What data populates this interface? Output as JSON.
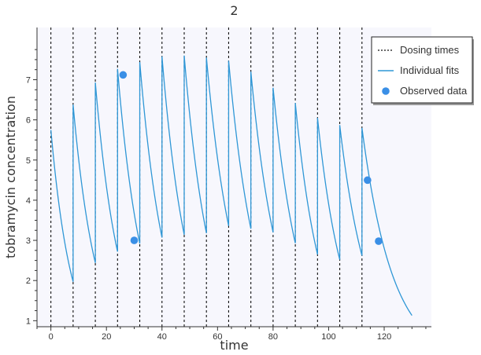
{
  "chart_data": {
    "type": "line",
    "title": "2",
    "xlabel": "time",
    "ylabel": "tobramycin concentration",
    "xlim": [
      -5,
      137
    ],
    "ylim": [
      0.85,
      8.3
    ],
    "x_ticks": [
      0,
      20,
      40,
      60,
      80,
      100,
      120
    ],
    "y_ticks": [
      1,
      2,
      3,
      4,
      5,
      6,
      7
    ],
    "grid": false,
    "legend_position": "top-right",
    "colors": {
      "fit": "#2f97d6",
      "observed": "#3a8fe6",
      "dosing": "#111111",
      "background": "#f7f7fd"
    },
    "legend": {
      "dosing_label": "Dosing times",
      "fit_label": "Individual fits",
      "observed_label": "Observed data"
    },
    "dosing_times": [
      0,
      8,
      16,
      24,
      32,
      40,
      48,
      56,
      64,
      72,
      80,
      88,
      96,
      104,
      112
    ],
    "fit_segments": [
      {
        "x": [
          0,
          8
        ],
        "y_start": 5.75,
        "y_end": 1.97
      },
      {
        "x": [
          8,
          16
        ],
        "y_start": 6.38,
        "y_end": 2.44
      },
      {
        "x": [
          16,
          24
        ],
        "y_start": 6.93,
        "y_end": 2.72
      },
      {
        "x": [
          24,
          32
        ],
        "y_start": 7.27,
        "y_end": 2.92
      },
      {
        "x": [
          32,
          40
        ],
        "y_start": 7.44,
        "y_end": 3.07
      },
      {
        "x": [
          40,
          48
        ],
        "y_start": 7.58,
        "y_end": 3.14
      },
      {
        "x": [
          48,
          56
        ],
        "y_start": 7.6,
        "y_end": 3.18
      },
      {
        "x": [
          56,
          64
        ],
        "y_start": 7.55,
        "y_end": 3.36
      },
      {
        "x": [
          64,
          72
        ],
        "y_start": 7.47,
        "y_end": 3.29
      },
      {
        "x": [
          72,
          80
        ],
        "y_start": 7.2,
        "y_end": 3.2
      },
      {
        "x": [
          80,
          88
        ],
        "y_start": 6.8,
        "y_end": 2.93
      },
      {
        "x": [
          88,
          96
        ],
        "y_start": 6.42,
        "y_end": 2.65
      },
      {
        "x": [
          96,
          104
        ],
        "y_start": 6.05,
        "y_end": 2.52
      },
      {
        "x": [
          104,
          112
        ],
        "y_start": 5.87,
        "y_end": 2.62
      },
      {
        "x": [
          112,
          130
        ],
        "y_start": 5.8,
        "y_end": 1.13
      }
    ],
    "observed": [
      {
        "x": 26,
        "y": 7.12
      },
      {
        "x": 30,
        "y": 3.0
      },
      {
        "x": 114,
        "y": 4.5
      },
      {
        "x": 118,
        "y": 2.98
      }
    ]
  }
}
